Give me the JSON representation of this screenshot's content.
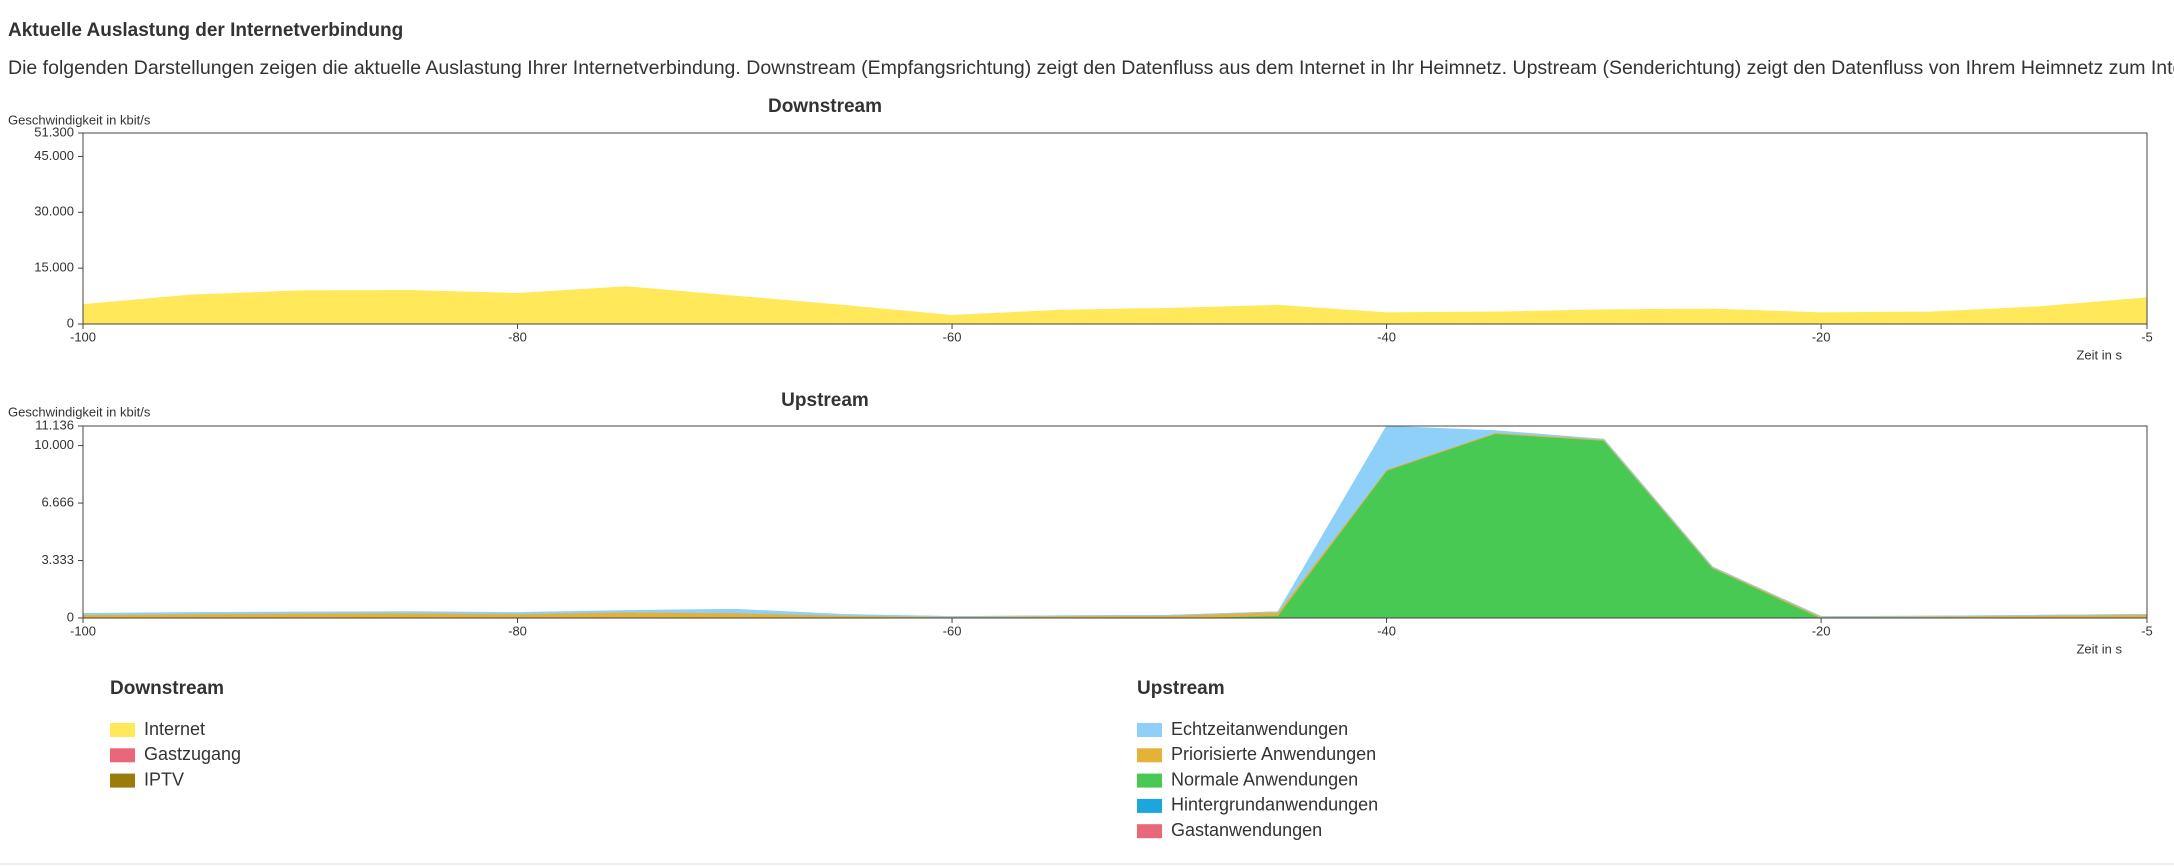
{
  "header": {
    "title": "Aktuelle Auslastung der Internetverbindung",
    "description": "Die folgenden Darstellungen zeigen die aktuelle Auslastung Ihrer Internetverbindung. Downstream (Empfangsrichtung) zeigt den Datenfluss aus dem Internet in Ihr Heimnetz. Upstream (Senderichtung) zeigt den Datenfluss von Ihrem Heimnetz zum Internet."
  },
  "chart_data": [
    {
      "type": "area",
      "stacked": true,
      "grid": false,
      "title": "Downstream",
      "ylabel": "Geschwindigkeit in kbit/s",
      "xlabel": "Zeit in s",
      "x": [
        -100,
        -95,
        -90,
        -85,
        -80,
        -75,
        -70,
        -65,
        -60,
        -55,
        -50,
        -45,
        -40,
        -35,
        -30,
        -25,
        -20,
        -15,
        -10,
        -5
      ],
      "xlim": [
        -100,
        -5
      ],
      "xticks": [
        -100,
        -80,
        -60,
        -40,
        -20,
        -5
      ],
      "ylim": [
        0,
        51300
      ],
      "yticks": [
        0,
        {
          "value": 15000,
          "label": "15.000"
        },
        {
          "value": 30000,
          "label": "30.000"
        },
        {
          "value": 45000,
          "label": "45.000"
        },
        {
          "value": 51300,
          "label": "51.300"
        }
      ],
      "series": [
        {
          "name": "Internet",
          "color": "#ffe95a",
          "values": [
            5200,
            7800,
            8900,
            9000,
            8200,
            10000,
            7500,
            5000,
            2300,
            3700,
            4200,
            5000,
            3000,
            3200,
            3800,
            4000,
            3000,
            3200,
            4600,
            7000
          ]
        },
        {
          "name": "Gastzugang",
          "color": "#e8677a",
          "values": [
            0,
            0,
            0,
            0,
            0,
            0,
            0,
            0,
            0,
            0,
            0,
            0,
            0,
            0,
            0,
            0,
            0,
            0,
            0,
            0
          ]
        },
        {
          "name": "IPTV",
          "color": "#9b7b0a",
          "values": [
            0,
            0,
            0,
            0,
            0,
            0,
            0,
            0,
            0,
            0,
            0,
            0,
            0,
            0,
            0,
            0,
            0,
            0,
            0,
            0
          ]
        }
      ]
    },
    {
      "type": "area",
      "stacked": true,
      "grid": false,
      "title": "Upstream",
      "ylabel": "Geschwindigkeit in kbit/s",
      "xlabel": "Zeit in s",
      "x": [
        -100,
        -95,
        -90,
        -85,
        -80,
        -75,
        -70,
        -65,
        -60,
        -55,
        -50,
        -45,
        -40,
        -35,
        -30,
        -25,
        -20,
        -15,
        -10,
        -5
      ],
      "xlim": [
        -100,
        -5
      ],
      "xticks": [
        -100,
        -80,
        -60,
        -40,
        -20,
        -5
      ],
      "ylim": [
        0,
        11136
      ],
      "yticks": [
        0,
        {
          "value": 3333,
          "label": "3.333"
        },
        {
          "value": 6666,
          "label": "6.666"
        },
        {
          "value": 10000,
          "label": "10.000"
        },
        {
          "value": 11136,
          "label": "11.136"
        }
      ],
      "series": [
        {
          "name": "Echtzeitanwendungen",
          "color": "#8fd0f9",
          "values": [
            60,
            60,
            60,
            60,
            60,
            80,
            200,
            50,
            0,
            0,
            0,
            0,
            2500,
            100,
            0,
            0,
            0,
            0,
            0,
            0
          ]
        },
        {
          "name": "Priorisierte Anwendungen",
          "color": "#e3b236",
          "values": [
            200,
            250,
            280,
            300,
            250,
            350,
            300,
            150,
            80,
            120,
            150,
            200,
            60,
            60,
            60,
            60,
            80,
            100,
            150,
            200
          ]
        },
        {
          "name": "Normale Anwendungen",
          "color": "#47c954",
          "values": [
            0,
            0,
            0,
            0,
            0,
            0,
            0,
            0,
            0,
            0,
            0,
            150,
            8560,
            10700,
            10300,
            2900,
            0,
            0,
            0,
            0
          ]
        },
        {
          "name": "Hintergrundanwendungen",
          "color": "#1ba6dd",
          "values": [
            0,
            0,
            0,
            0,
            0,
            0,
            0,
            0,
            0,
            0,
            0,
            0,
            0,
            0,
            0,
            0,
            0,
            0,
            0,
            0
          ]
        },
        {
          "name": "Gastanwendungen",
          "color": "#e8677a",
          "values": [
            0,
            0,
            0,
            0,
            0,
            0,
            0,
            0,
            0,
            0,
            0,
            0,
            0,
            0,
            0,
            0,
            0,
            0,
            0,
            0
          ]
        }
      ]
    }
  ]
}
